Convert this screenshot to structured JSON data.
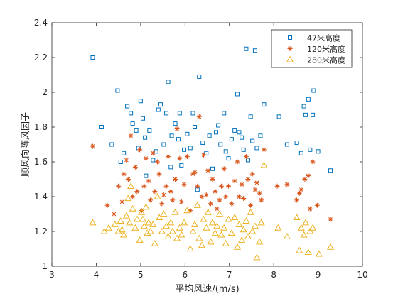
{
  "chart_data": {
    "type": "scatter",
    "xlabel": "平均风速/(m/s)",
    "ylabel": "顺风向阵风因子",
    "xlim": [
      3,
      10
    ],
    "ylim": [
      1,
      2.4
    ],
    "xticks": [
      "3",
      "4",
      "5",
      "6",
      "7",
      "8",
      "9",
      "10"
    ],
    "yticks": [
      "1",
      "1.2",
      "1.4",
      "1.6",
      "1.8",
      "2",
      "2.2",
      "2.4"
    ],
    "legend_position": "top-right",
    "grid": false,
    "series": [
      {
        "name": "47米高度",
        "marker": "square",
        "color": "#0072BD",
        "points": [
          [
            3.92,
            2.2
          ],
          [
            4.12,
            1.8
          ],
          [
            4.35,
            1.7
          ],
          [
            4.55,
            1.6
          ],
          [
            4.48,
            2.01
          ],
          [
            4.62,
            1.65
          ],
          [
            4.7,
            1.92
          ],
          [
            4.78,
            1.88
          ],
          [
            4.82,
            1.82
          ],
          [
            4.9,
            1.78
          ],
          [
            4.95,
            1.68
          ],
          [
            5.0,
            1.95
          ],
          [
            5.05,
            1.85
          ],
          [
            5.1,
            1.74
          ],
          [
            5.12,
            1.52
          ],
          [
            5.2,
            1.78
          ],
          [
            5.28,
            1.61
          ],
          [
            5.35,
            1.66
          ],
          [
            5.4,
            1.9
          ],
          [
            5.45,
            1.93
          ],
          [
            5.52,
            1.7
          ],
          [
            5.58,
            1.88
          ],
          [
            5.62,
            2.06
          ],
          [
            5.68,
            1.57
          ],
          [
            5.7,
            1.75
          ],
          [
            5.78,
            1.82
          ],
          [
            5.85,
            1.73
          ],
          [
            5.88,
            1.88
          ],
          [
            5.92,
            1.58
          ],
          [
            5.98,
            1.67
          ],
          [
            6.05,
            1.76
          ],
          [
            6.12,
            1.68
          ],
          [
            6.18,
            1.88
          ],
          [
            6.22,
            1.8
          ],
          [
            6.28,
            1.44
          ],
          [
            6.32,
            2.09
          ],
          [
            6.4,
            1.71
          ],
          [
            6.48,
            1.65
          ],
          [
            6.55,
            1.75
          ],
          [
            6.62,
            1.56
          ],
          [
            6.7,
            1.77
          ],
          [
            6.75,
            1.81
          ],
          [
            6.8,
            1.7
          ],
          [
            6.88,
            1.88
          ],
          [
            6.92,
            1.66
          ],
          [
            6.98,
            1.62
          ],
          [
            7.05,
            1.73
          ],
          [
            7.12,
            1.78
          ],
          [
            7.18,
            1.99
          ],
          [
            7.22,
            1.77
          ],
          [
            7.28,
            1.74
          ],
          [
            7.32,
            1.67
          ],
          [
            7.38,
            2.25
          ],
          [
            7.42,
            1.61
          ],
          [
            7.48,
            1.86
          ],
          [
            7.52,
            1.72
          ],
          [
            7.58,
            2.24
          ],
          [
            7.62,
            1.68
          ],
          [
            7.7,
            1.75
          ],
          [
            7.78,
            1.93
          ],
          [
            8.12,
            1.86
          ],
          [
            8.3,
            1.7
          ],
          [
            8.52,
            1.71
          ],
          [
            8.62,
            1.65
          ],
          [
            8.68,
            1.92
          ],
          [
            8.72,
            1.87
          ],
          [
            8.78,
            1.96
          ],
          [
            8.82,
            1.67
          ],
          [
            8.88,
            1.87
          ],
          [
            8.9,
            2.01
          ],
          [
            9.0,
            1.66
          ],
          [
            9.28,
            1.55
          ]
        ]
      },
      {
        "name": "120米高度",
        "marker": "asterisk",
        "color": "#D95319",
        "points": [
          [
            3.92,
            1.69
          ],
          [
            4.25,
            1.35
          ],
          [
            4.4,
            1.3
          ],
          [
            4.5,
            1.46
          ],
          [
            4.58,
            1.37
          ],
          [
            4.62,
            1.53
          ],
          [
            4.68,
            1.61
          ],
          [
            4.72,
            1.5
          ],
          [
            4.78,
            1.75
          ],
          [
            4.82,
            1.4
          ],
          [
            4.88,
            1.57
          ],
          [
            4.92,
            1.43
          ],
          [
            4.98,
            1.67
          ],
          [
            5.02,
            1.32
          ],
          [
            5.08,
            1.46
          ],
          [
            5.12,
            1.62
          ],
          [
            5.18,
            1.49
          ],
          [
            5.22,
            1.38
          ],
          [
            5.28,
            1.65
          ],
          [
            5.32,
            1.43
          ],
          [
            5.38,
            1.6
          ],
          [
            5.42,
            1.53
          ],
          [
            5.48,
            1.36
          ],
          [
            5.52,
            1.41
          ],
          [
            5.58,
            1.46
          ],
          [
            5.62,
            1.63
          ],
          [
            5.68,
            1.43
          ],
          [
            5.72,
            1.38
          ],
          [
            5.78,
            1.5
          ],
          [
            5.82,
            1.79
          ],
          [
            5.88,
            1.62
          ],
          [
            5.92,
            1.37
          ],
          [
            5.98,
            1.47
          ],
          [
            6.05,
            1.63
          ],
          [
            6.12,
            1.32
          ],
          [
            6.18,
            1.53
          ],
          [
            6.22,
            1.54
          ],
          [
            6.28,
            1.46
          ],
          [
            6.32,
            1.86
          ],
          [
            6.38,
            1.4
          ],
          [
            6.42,
            1.64
          ],
          [
            6.48,
            1.41
          ],
          [
            6.52,
            1.55
          ],
          [
            6.58,
            1.36
          ],
          [
            6.62,
            1.5
          ],
          [
            6.68,
            1.43
          ],
          [
            6.72,
            1.33
          ],
          [
            6.78,
            1.38
          ],
          [
            6.82,
            1.46
          ],
          [
            6.88,
            1.56
          ],
          [
            6.92,
            1.4
          ],
          [
            6.98,
            1.46
          ],
          [
            7.05,
            1.36
          ],
          [
            7.12,
            1.49
          ],
          [
            7.18,
            1.6
          ],
          [
            7.22,
            1.4
          ],
          [
            7.28,
            1.47
          ],
          [
            7.32,
            1.39
          ],
          [
            7.38,
            1.63
          ],
          [
            7.42,
            1.5
          ],
          [
            7.48,
            1.35
          ],
          [
            7.52,
            1.53
          ],
          [
            7.58,
            1.44
          ],
          [
            7.62,
            1.48
          ],
          [
            7.68,
            1.42
          ],
          [
            7.72,
            1.38
          ],
          [
            7.78,
            1.67
          ],
          [
            8.08,
            1.46
          ],
          [
            8.3,
            1.47
          ],
          [
            8.52,
            1.38
          ],
          [
            8.58,
            1.42
          ],
          [
            8.62,
            1.44
          ],
          [
            8.7,
            1.5
          ],
          [
            8.78,
            1.52
          ],
          [
            8.88,
            1.6
          ],
          [
            8.82,
            1.33
          ],
          [
            8.98,
            1.35
          ],
          [
            9.28,
            1.27
          ]
        ]
      },
      {
        "name": "280米高度",
        "marker": "triangle",
        "color": "#EDB120",
        "points": [
          [
            3.92,
            1.25
          ],
          [
            4.18,
            1.2
          ],
          [
            4.28,
            1.22
          ],
          [
            4.42,
            1.24
          ],
          [
            4.5,
            1.2
          ],
          [
            4.55,
            1.26
          ],
          [
            4.58,
            1.21
          ],
          [
            4.62,
            1.18
          ],
          [
            4.68,
            1.29
          ],
          [
            4.72,
            1.39
          ],
          [
            4.75,
            1.25
          ],
          [
            4.78,
            1.46
          ],
          [
            4.82,
            1.33
          ],
          [
            4.88,
            1.22
          ],
          [
            4.92,
            1.27
          ],
          [
            4.98,
            1.15
          ],
          [
            5.02,
            1.31
          ],
          [
            5.05,
            1.27
          ],
          [
            5.08,
            1.23
          ],
          [
            5.12,
            1.34
          ],
          [
            5.15,
            1.19
          ],
          [
            5.18,
            1.25
          ],
          [
            5.22,
            1.2
          ],
          [
            5.28,
            1.24
          ],
          [
            5.32,
            1.13
          ],
          [
            5.38,
            1.4
          ],
          [
            5.42,
            1.28
          ],
          [
            5.48,
            1.2
          ],
          [
            5.52,
            1.3
          ],
          [
            5.58,
            1.23
          ],
          [
            5.62,
            1.17
          ],
          [
            5.68,
            1.25
          ],
          [
            5.72,
            1.2
          ],
          [
            5.78,
            1.31
          ],
          [
            5.82,
            1.16
          ],
          [
            5.88,
            1.22
          ],
          [
            5.92,
            1.18
          ],
          [
            5.98,
            1.25
          ],
          [
            6.05,
            1.32
          ],
          [
            6.12,
            1.1
          ],
          [
            6.18,
            1.2
          ],
          [
            6.22,
            1.24
          ],
          [
            6.28,
            1.35
          ],
          [
            6.32,
            1.16
          ],
          [
            6.38,
            1.12
          ],
          [
            6.42,
            1.27
          ],
          [
            6.48,
            1.22
          ],
          [
            6.52,
            1.31
          ],
          [
            6.58,
            1.14
          ],
          [
            6.62,
            1.25
          ],
          [
            6.68,
            1.19
          ],
          [
            6.72,
            1.23
          ],
          [
            6.78,
            1.3
          ],
          [
            6.82,
            1.18
          ],
          [
            6.88,
            1.22
          ],
          [
            6.92,
            1.13
          ],
          [
            6.98,
            1.27
          ],
          [
            7.05,
            1.19
          ],
          [
            7.12,
            1.28
          ],
          [
            7.18,
            1.11
          ],
          [
            7.22,
            1.24
          ],
          [
            7.28,
            1.15
          ],
          [
            7.32,
            1.21
          ],
          [
            7.38,
            1.26
          ],
          [
            7.42,
            1.17
          ],
          [
            7.48,
            1.31
          ],
          [
            7.52,
            1.2
          ],
          [
            7.58,
            1.23
          ],
          [
            7.62,
            1.05
          ],
          [
            7.68,
            1.14
          ],
          [
            7.72,
            1.25
          ],
          [
            7.78,
            1.58
          ],
          [
            8.1,
            1.22
          ],
          [
            8.3,
            1.17
          ],
          [
            8.52,
            1.28
          ],
          [
            8.58,
            1.09
          ],
          [
            8.62,
            1.22
          ],
          [
            8.68,
            1.18
          ],
          [
            8.72,
            1.25
          ],
          [
            8.78,
            1.08
          ],
          [
            8.82,
            1.2
          ],
          [
            8.88,
            1.22
          ],
          [
            9.02,
            1.07
          ],
          [
            9.28,
            1.11
          ]
        ]
      }
    ]
  }
}
